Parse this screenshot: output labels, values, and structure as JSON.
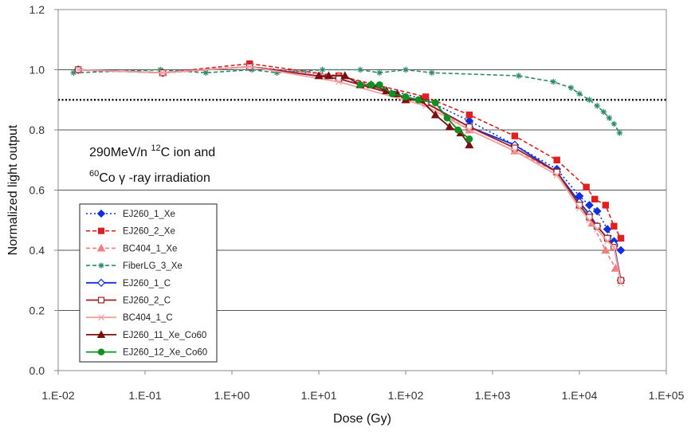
{
  "chart_data": {
    "type": "line",
    "xscale": "log",
    "xlim": [
      0.01,
      100000
    ],
    "ylim": [
      0.0,
      1.2
    ],
    "xticks": [
      "1.E-02",
      "1.E-01",
      "1.E+00",
      "1.E+01",
      "1.E+02",
      "1.E+03",
      "1.E+04",
      "1.E+05"
    ],
    "xtick_values": [
      0.01,
      0.1,
      1,
      10,
      100,
      1000,
      10000,
      100000
    ],
    "yticks": [
      "0.0",
      "0.2",
      "0.4",
      "0.6",
      "0.8",
      "1.0",
      "1.2"
    ],
    "ytick_values": [
      0.0,
      0.2,
      0.4,
      0.6,
      0.8,
      1.0,
      1.2
    ],
    "xlabel": "Dose (Gy)",
    "ylabel": "Normalized light output",
    "grid": "horizontal",
    "reference_line": {
      "y": 0.9,
      "style": "dotted"
    },
    "annotation": {
      "line1": {
        "pre": "290MeV/n ",
        "sup": "12",
        "post": "C ion and"
      },
      "line2": {
        "sup": "60",
        "post": "Co  γ -ray irradiation"
      }
    },
    "legend_position": "left-center",
    "series": [
      {
        "name": "EJ260_1_Xe",
        "color": "#1030e0",
        "dash": "dot",
        "marker": "diamond",
        "marker_fill": "filled",
        "points": [
          [
            0.017,
            1.0
          ],
          [
            0.16,
            0.99
          ],
          [
            1.6,
            1.01
          ],
          [
            17,
            0.98
          ],
          [
            170,
            0.9
          ],
          [
            540,
            0.83
          ],
          [
            1800,
            0.75
          ],
          [
            5500,
            0.67
          ],
          [
            10000,
            0.58
          ],
          [
            13000,
            0.55
          ],
          [
            16000,
            0.53
          ],
          [
            21000,
            0.47
          ],
          [
            25000,
            0.43
          ],
          [
            30000,
            0.4
          ]
        ]
      },
      {
        "name": "EJ260_2_Xe",
        "color": "#e02020",
        "dash": "dash",
        "marker": "square",
        "marker_fill": "filled",
        "points": [
          [
            0.017,
            1.0
          ],
          [
            0.16,
            0.99
          ],
          [
            1.6,
            1.02
          ],
          [
            17,
            0.98
          ],
          [
            170,
            0.91
          ],
          [
            540,
            0.85
          ],
          [
            1800,
            0.78
          ],
          [
            5500,
            0.7
          ],
          [
            12000,
            0.61
          ],
          [
            15000,
            0.57
          ],
          [
            20000,
            0.55
          ],
          [
            25000,
            0.48
          ],
          [
            30000,
            0.44
          ]
        ]
      },
      {
        "name": "BC404_1_Xe",
        "color": "#f08080",
        "dash": "dash",
        "marker": "triangle",
        "marker_fill": "filled",
        "points": [
          [
            0.017,
            1.0
          ],
          [
            0.16,
            0.99
          ],
          [
            1.6,
            1.01
          ],
          [
            17,
            0.98
          ],
          [
            170,
            0.89
          ],
          [
            540,
            0.8
          ],
          [
            1800,
            0.73
          ],
          [
            5500,
            0.66
          ],
          [
            10000,
            0.55
          ],
          [
            14000,
            0.49
          ],
          [
            20000,
            0.4
          ],
          [
            26000,
            0.34
          ]
        ]
      },
      {
        "name": "FiberLG_3_Xe",
        "color": "#2e8b6a",
        "dash": "dash",
        "marker": "asterisk",
        "marker_fill": "open",
        "points": [
          [
            0.015,
            0.99
          ],
          [
            0.15,
            1.0
          ],
          [
            0.5,
            0.99
          ],
          [
            1.7,
            1.0
          ],
          [
            3.3,
            0.99
          ],
          [
            11,
            1.0
          ],
          [
            30,
            1.0
          ],
          [
            50,
            0.99
          ],
          [
            100,
            1.0
          ],
          [
            200,
            0.99
          ],
          [
            2000,
            0.98
          ],
          [
            5000,
            0.96
          ],
          [
            8000,
            0.94
          ],
          [
            10000,
            0.92
          ],
          [
            13000,
            0.9
          ],
          [
            16000,
            0.88
          ],
          [
            19000,
            0.86
          ],
          [
            22000,
            0.84
          ],
          [
            25000,
            0.82
          ],
          [
            29000,
            0.79
          ]
        ]
      },
      {
        "name": "EJ260_1_C",
        "color": "#1030e0",
        "dash": "solid",
        "marker": "diamond",
        "marker_fill": "open",
        "points": [
          [
            0.017,
            1.0
          ],
          [
            0.16,
            0.99
          ],
          [
            1.6,
            1.01
          ],
          [
            17,
            0.97
          ],
          [
            170,
            0.89
          ],
          [
            540,
            0.81
          ],
          [
            1800,
            0.75
          ],
          [
            5500,
            0.66
          ],
          [
            10000,
            0.56
          ],
          [
            13000,
            0.52
          ],
          [
            16000,
            0.48
          ],
          [
            21000,
            0.44
          ],
          [
            25000,
            0.42
          ],
          [
            30000,
            0.3
          ]
        ]
      },
      {
        "name": "EJ260_2_C",
        "color": "#a02020",
        "dash": "solid",
        "marker": "square",
        "marker_fill": "open",
        "points": [
          [
            0.017,
            1.0
          ],
          [
            0.16,
            0.99
          ],
          [
            1.6,
            1.01
          ],
          [
            17,
            0.97
          ],
          [
            170,
            0.89
          ],
          [
            540,
            0.81
          ],
          [
            1800,
            0.74
          ],
          [
            5500,
            0.66
          ],
          [
            10000,
            0.55
          ],
          [
            13000,
            0.51
          ],
          [
            16000,
            0.48
          ],
          [
            21000,
            0.44
          ],
          [
            25000,
            0.41
          ],
          [
            30000,
            0.3
          ]
        ]
      },
      {
        "name": "BC404_1_C",
        "color": "#f4a0a0",
        "dash": "solid",
        "marker": "x",
        "marker_fill": "open",
        "points": [
          [
            0.017,
            1.0
          ],
          [
            0.16,
            0.99
          ],
          [
            1.6,
            1.01
          ],
          [
            17,
            0.96
          ],
          [
            170,
            0.88
          ],
          [
            540,
            0.8
          ],
          [
            1800,
            0.73
          ],
          [
            5500,
            0.65
          ],
          [
            10000,
            0.54
          ],
          [
            13000,
            0.5
          ],
          [
            16000,
            0.47
          ],
          [
            21000,
            0.43
          ],
          [
            25000,
            0.41
          ],
          [
            30000,
            0.29
          ]
        ]
      },
      {
        "name": "EJ260_11_Xe_Co60",
        "color": "#7a1010",
        "dash": "solid",
        "marker": "triangle",
        "marker_fill": "filled",
        "points": [
          [
            10,
            0.98
          ],
          [
            13,
            0.98
          ],
          [
            20,
            0.98
          ],
          [
            30,
            0.95
          ],
          [
            40,
            0.95
          ],
          [
            60,
            0.93
          ],
          [
            80,
            0.92
          ],
          [
            100,
            0.9
          ],
          [
            150,
            0.9
          ],
          [
            220,
            0.85
          ],
          [
            320,
            0.81
          ],
          [
            430,
            0.79
          ],
          [
            540,
            0.75
          ]
        ]
      },
      {
        "name": "EJ260_12_Xe_Co60",
        "color": "#109020",
        "dash": "solid",
        "marker": "circle",
        "marker_fill": "filled",
        "points": [
          [
            30,
            0.95
          ],
          [
            40,
            0.95
          ],
          [
            50,
            0.95
          ],
          [
            70,
            0.92
          ],
          [
            100,
            0.91
          ],
          [
            140,
            0.9
          ],
          [
            220,
            0.89
          ],
          [
            300,
            0.84
          ],
          [
            400,
            0.8
          ],
          [
            540,
            0.77
          ]
        ]
      }
    ]
  }
}
